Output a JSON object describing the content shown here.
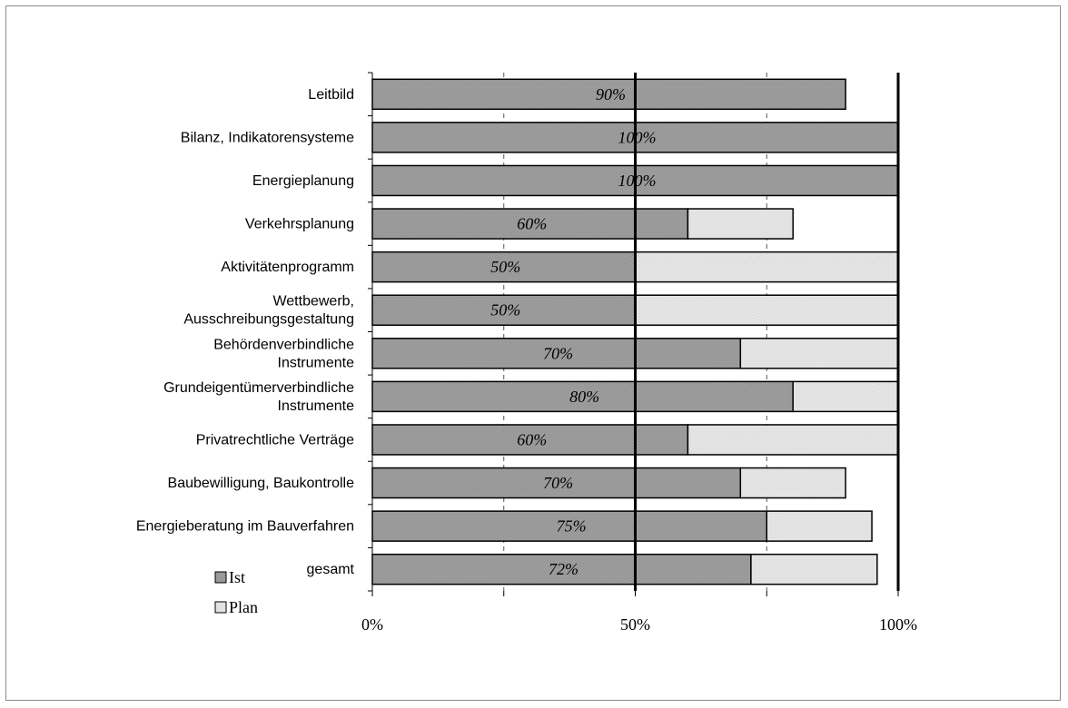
{
  "chart_data": {
    "type": "bar",
    "orientation": "horizontal",
    "stacked": true,
    "categories": [
      [
        "Leitbild"
      ],
      [
        "Bilanz, Indikatorensysteme"
      ],
      [
        "Energieplanung"
      ],
      [
        "Verkehrsplanung"
      ],
      [
        "Aktivitätenprogramm"
      ],
      [
        "Wettbewerb,",
        "Ausschreibungsgestaltung"
      ],
      [
        "Behördenverbindliche",
        "Instrumente"
      ],
      [
        "Grundeigentümerverbindliche",
        "Instrumente"
      ],
      [
        "Privatrechtliche Verträge"
      ],
      [
        "Baubewilligung, Baukontrolle"
      ],
      [
        "Energieberatung im Bauverfahren"
      ],
      [
        "gesamt"
      ]
    ],
    "series": [
      {
        "name": "Ist",
        "color": "#a6a6a6",
        "values": [
          90,
          100,
          100,
          60,
          50,
          50,
          70,
          80,
          60,
          70,
          75,
          72
        ],
        "labels": [
          "90%",
          "100%",
          "100%",
          "60%",
          "50%",
          "50%",
          "70%",
          "80%",
          "60%",
          "70%",
          "75%",
          "72%"
        ]
      },
      {
        "name": "Plan",
        "color": "#e8e8e8",
        "values": [
          0,
          0,
          0,
          20,
          50,
          50,
          30,
          20,
          40,
          20,
          20,
          24
        ]
      }
    ],
    "xlim": [
      0,
      100
    ],
    "xticks": [
      "0%",
      "50%",
      "100%"
    ],
    "grid": "vertical dashed at 25% and 75%, solid at 50% and 100%",
    "legend": "bottom-left",
    "title": "",
    "xlabel": "",
    "ylabel": ""
  }
}
